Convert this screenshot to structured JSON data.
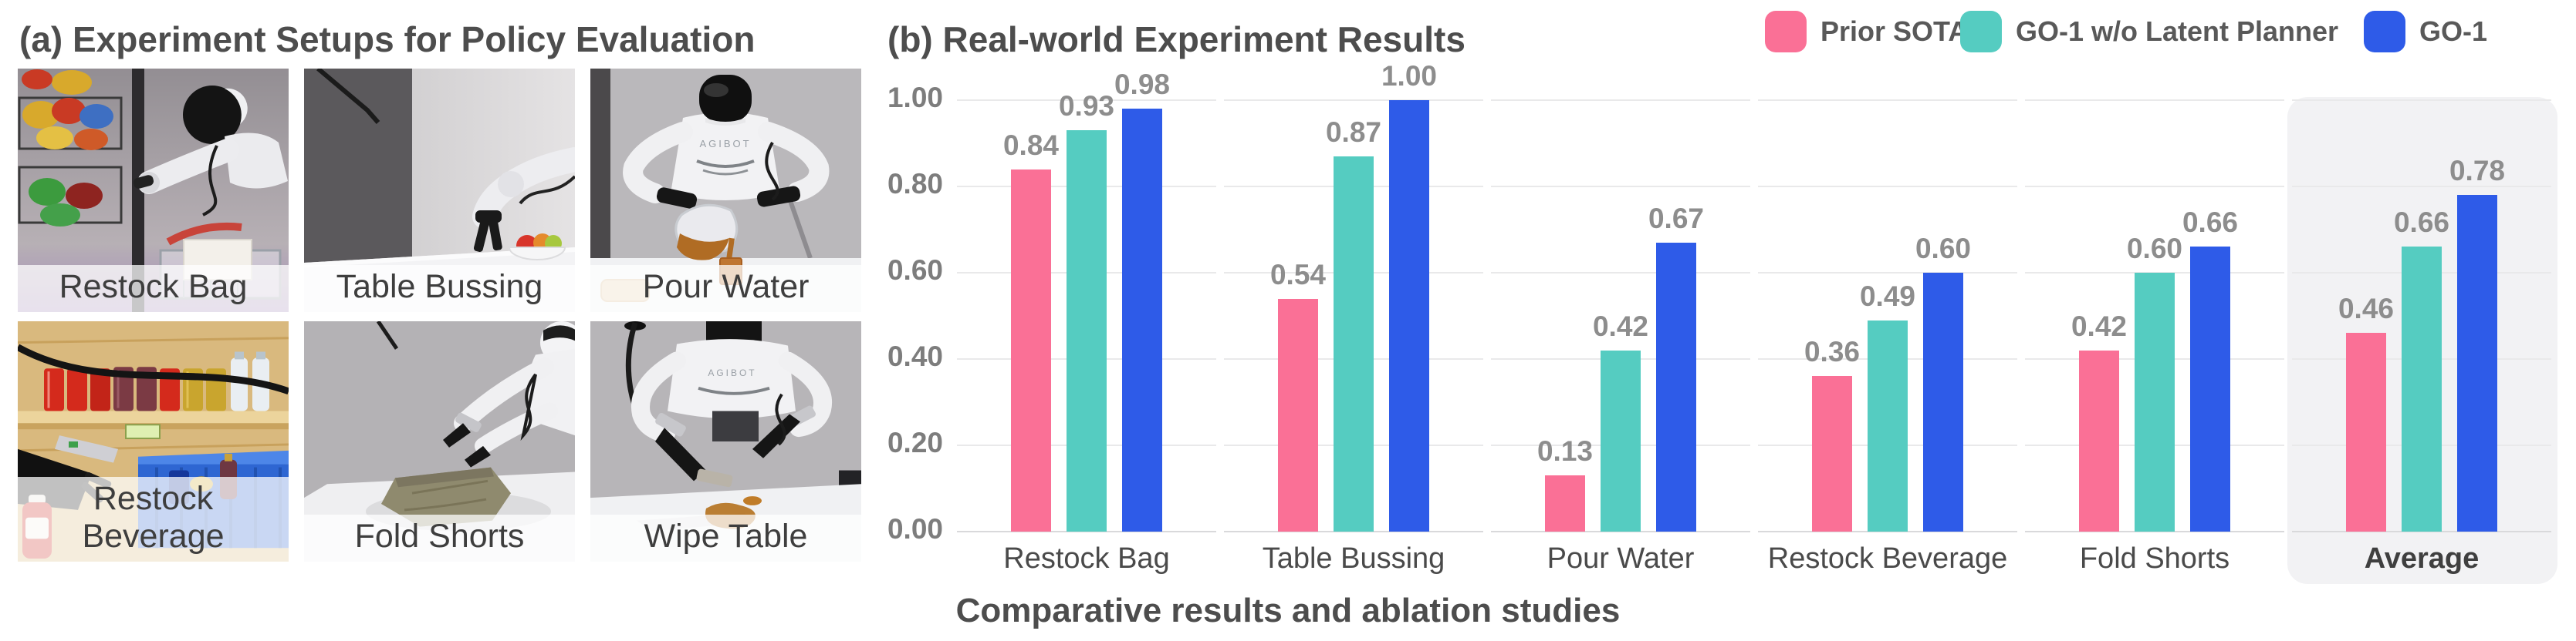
{
  "figure": {
    "caption": "Comparative results and ablation studies"
  },
  "panel_a": {
    "title": "(a) Experiment Setups for Policy Evaluation",
    "photos": [
      {
        "label": "Restock Bag"
      },
      {
        "label": "Table Bussing"
      },
      {
        "label": "Pour Water"
      },
      {
        "label": "Restock Beverage"
      },
      {
        "label": "Fold Shorts"
      },
      {
        "label": "Wipe Table"
      }
    ]
  },
  "panel_b": {
    "title": "(b) Real-world Experiment Results"
  },
  "chart_data": {
    "type": "bar",
    "title": "(b) Real-world Experiment Results",
    "categories": [
      "Restock Bag",
      "Table Bussing",
      "Pour Water",
      "Restock Beverage",
      "Fold Shorts",
      "Average"
    ],
    "series": [
      {
        "name": "Prior SOTA",
        "color": "#FA7096",
        "values": [
          0.84,
          0.54,
          0.13,
          0.36,
          0.42,
          0.46
        ],
        "labels": [
          "0.84",
          "0.54",
          "0.13",
          "0.36",
          "0.42",
          "0.46"
        ]
      },
      {
        "name": "GO-1 w/o Latent Planner",
        "color": "#55CCC1",
        "values": [
          0.93,
          0.87,
          0.42,
          0.49,
          0.6,
          0.66
        ],
        "labels": [
          "0.93",
          "0.87",
          "0.42",
          "0.49",
          "0.60",
          "0.66"
        ]
      },
      {
        "name": "GO-1",
        "color": "#2E5BE8",
        "values": [
          0.98,
          1.0,
          0.67,
          0.6,
          0.66,
          0.78
        ],
        "labels": [
          "0.98",
          "1.00",
          "0.67",
          "0.60",
          "0.66",
          "0.78"
        ]
      }
    ],
    "ylim": [
      0.0,
      1.0
    ],
    "yticks": [
      "0.00",
      "0.20",
      "0.40",
      "0.60",
      "0.80",
      "1.00"
    ],
    "grid": true,
    "value_labels": true,
    "legend_position": "top-right",
    "highlighted_category": "Average",
    "xlabel": "",
    "ylabel": ""
  }
}
